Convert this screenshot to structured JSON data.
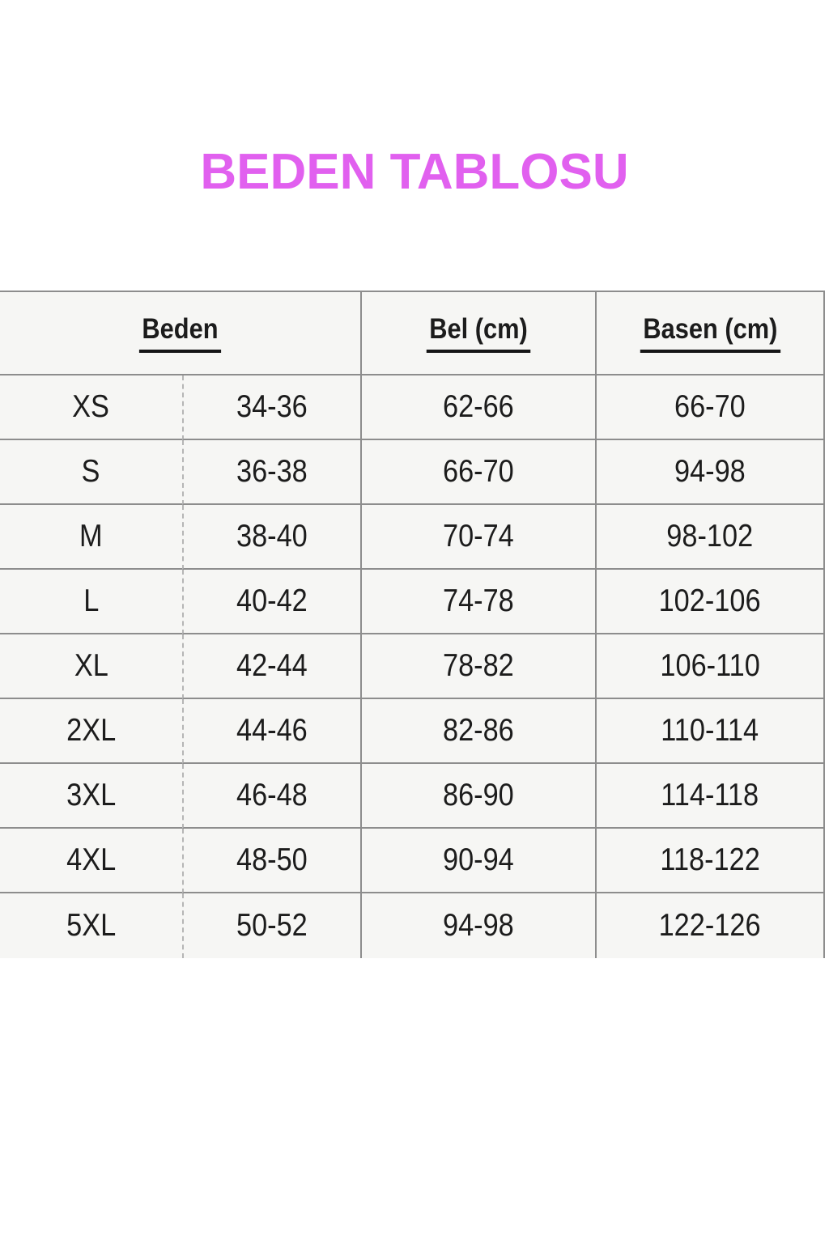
{
  "title": {
    "text": "BEDEN TABLOSU",
    "color": "#e160ef"
  },
  "table": {
    "headers": {
      "beden": "Beden",
      "bel": "Bel (cm)",
      "basen": "Basen (cm)"
    },
    "border_color": "#8d8d8d",
    "cell_background": "#f6f6f4",
    "text_color": "#1c1c1c",
    "rows": [
      {
        "size": "XS",
        "size_range": "34-36",
        "bel": "62-66",
        "basen": "66-70"
      },
      {
        "size": "S",
        "size_range": "36-38",
        "bel": "66-70",
        "basen": "94-98"
      },
      {
        "size": "M",
        "size_range": "38-40",
        "bel": "70-74",
        "basen": "98-102"
      },
      {
        "size": "L",
        "size_range": "40-42",
        "bel": "74-78",
        "basen": "102-106"
      },
      {
        "size": "XL",
        "size_range": "42-44",
        "bel": "78-82",
        "basen": "106-110"
      },
      {
        "size": "2XL",
        "size_range": "44-46",
        "bel": "82-86",
        "basen": "110-114"
      },
      {
        "size": "3XL",
        "size_range": "46-48",
        "bel": "86-90",
        "basen": "114-118"
      },
      {
        "size": "4XL",
        "size_range": "48-50",
        "bel": "90-94",
        "basen": "118-122"
      },
      {
        "size": "5XL",
        "size_range": "50-52",
        "bel": "94-98",
        "basen": "122-126"
      }
    ]
  }
}
